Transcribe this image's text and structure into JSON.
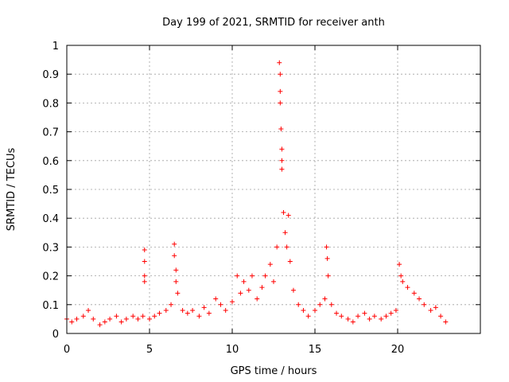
{
  "chart_data": {
    "type": "scatter",
    "title": "Day 199 of 2021, SRMTID for receiver anth",
    "xlabel": "GPS time / hours",
    "ylabel": "SRMTID / TECUs",
    "xlim": [
      0,
      25
    ],
    "ylim": [
      0,
      1
    ],
    "xticks": [
      0,
      5,
      10,
      15,
      20
    ],
    "xtick_labels": [
      "0",
      "5",
      "10",
      "15",
      "20"
    ],
    "yticks": [
      0,
      0.1,
      0.2,
      0.3,
      0.4,
      0.5,
      0.6,
      0.7,
      0.8,
      0.9,
      1
    ],
    "ytick_labels": [
      "0",
      "0.1",
      "0.2",
      "0.3",
      "0.4",
      "0.5",
      "0.6",
      "0.7",
      "0.8",
      "0.9",
      "1"
    ],
    "grid": true,
    "marker": "+",
    "color": "#ff0000",
    "series": [
      {
        "name": "anth",
        "x": [
          0.0,
          0.3,
          0.6,
          1.0,
          1.3,
          1.6,
          2.0,
          2.3,
          2.6,
          3.0,
          3.3,
          3.6,
          4.0,
          4.3,
          4.6,
          4.7,
          4.7,
          4.7,
          4.7,
          5.0,
          5.3,
          5.6,
          6.0,
          6.3,
          6.5,
          6.5,
          6.6,
          6.6,
          6.7,
          7.0,
          7.3,
          7.6,
          8.0,
          8.3,
          8.6,
          9.0,
          9.3,
          9.6,
          10.0,
          10.3,
          10.5,
          10.7,
          11.0,
          11.2,
          11.5,
          11.8,
          12.0,
          12.3,
          12.5,
          12.7,
          12.85,
          12.9,
          12.9,
          12.9,
          12.95,
          13.0,
          13.0,
          13.0,
          13.1,
          13.2,
          13.3,
          13.4,
          13.5,
          13.7,
          14.0,
          14.3,
          14.6,
          15.0,
          15.3,
          15.6,
          15.7,
          15.75,
          15.8,
          16.0,
          16.3,
          16.6,
          17.0,
          17.3,
          17.6,
          18.0,
          18.3,
          18.6,
          19.0,
          19.3,
          19.6,
          19.9,
          20.1,
          20.2,
          20.3,
          20.6,
          21.0,
          21.3,
          21.6,
          22.0,
          22.3,
          22.6,
          22.9
        ],
        "y": [
          0.05,
          0.04,
          0.05,
          0.06,
          0.08,
          0.05,
          0.03,
          0.04,
          0.05,
          0.06,
          0.04,
          0.05,
          0.06,
          0.05,
          0.06,
          0.29,
          0.25,
          0.2,
          0.18,
          0.05,
          0.06,
          0.07,
          0.08,
          0.1,
          0.31,
          0.27,
          0.22,
          0.18,
          0.14,
          0.08,
          0.07,
          0.08,
          0.06,
          0.09,
          0.07,
          0.12,
          0.1,
          0.08,
          0.11,
          0.2,
          0.14,
          0.18,
          0.15,
          0.2,
          0.12,
          0.16,
          0.2,
          0.24,
          0.18,
          0.3,
          0.94,
          0.9,
          0.84,
          0.8,
          0.71,
          0.64,
          0.6,
          0.57,
          0.42,
          0.35,
          0.3,
          0.41,
          0.25,
          0.15,
          0.1,
          0.08,
          0.06,
          0.08,
          0.1,
          0.12,
          0.3,
          0.26,
          0.2,
          0.1,
          0.07,
          0.06,
          0.05,
          0.04,
          0.06,
          0.07,
          0.05,
          0.06,
          0.05,
          0.06,
          0.07,
          0.08,
          0.24,
          0.2,
          0.18,
          0.16,
          0.14,
          0.12,
          0.1,
          0.08,
          0.09,
          0.06,
          0.04
        ]
      }
    ]
  }
}
